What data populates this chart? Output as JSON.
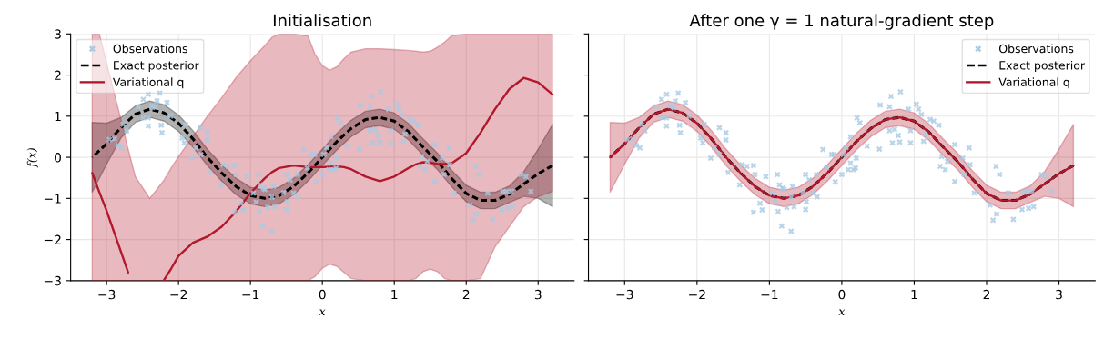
{
  "chart_data": [
    {
      "type": "line",
      "title": "Initialisation",
      "xlabel": "x",
      "ylabel": "f(x)",
      "xlim": [
        -3.5,
        3.5
      ],
      "ylim": [
        -3,
        3
      ],
      "xticks": [
        {
          "value": -3,
          "label": "−3"
        },
        {
          "value": -2,
          "label": "−2"
        },
        {
          "value": -1,
          "label": "−1"
        },
        0,
        1,
        2,
        3
      ],
      "yticks": [
        {
          "value": -3,
          "label": "−3"
        },
        {
          "value": -2,
          "label": "−2"
        },
        {
          "value": -1,
          "label": "−1"
        },
        0,
        1,
        2,
        3
      ],
      "grid": true,
      "legend": "top left",
      "series": [
        {
          "name": "Observations",
          "type": "scatter",
          "marker": "cross",
          "color": "#a9cbe3",
          "x": [
            -2.96,
            -2.89,
            -2.84,
            -2.79,
            -2.77,
            -2.72,
            -2.56,
            -2.49,
            -2.42,
            -2.37,
            -2.32,
            -2.3,
            -2.26,
            -2.42,
            -2.42,
            -2.49,
            -2.24,
            -2.23,
            -2.16,
            -2.11,
            -1.95,
            -1.92,
            -1.9,
            -1.81,
            -1.76,
            -1.69,
            -1.69,
            -1.6,
            -1.6,
            -1.57,
            -1.41,
            -1.38,
            -1.31,
            -1.22,
            -1.2,
            -1.22,
            -1.13,
            -1.1,
            -1.05,
            -0.96,
            -0.92,
            -0.88,
            -0.89,
            -0.86,
            -0.82,
            -0.8,
            -0.68,
            -0.7,
            -0.83,
            -0.7,
            -0.66,
            -0.76,
            -0.54,
            -0.5,
            -0.49,
            -0.5,
            -0.45,
            -0.4,
            -0.35,
            -0.34,
            -0.26,
            -0.21,
            -0.14,
            -0.11,
            -0.09,
            0.0,
            0.02,
            0.06,
            0.09,
            0.12,
            0.16,
            0.19,
            0.2,
            0.21,
            0.25,
            0.12,
            0.35,
            0.52,
            0.53,
            0.66,
            0.68,
            0.66,
            0.7,
            0.73,
            0.78,
            0.8,
            0.81,
            0.92,
            0.95,
            0.95,
            1.03,
            1.06,
            1.1,
            1.15,
            1.13,
            1.22,
            1.27,
            1.34,
            1.38,
            1.36,
            1.43,
            1.46,
            1.56,
            1.56,
            1.67,
            1.69,
            1.76,
            1.77,
            1.83,
            2.05,
            2.09,
            2.13,
            2.14,
            2.18,
            2.3,
            2.37,
            2.49,
            2.51,
            2.56,
            2.58,
            2.65,
            2.63,
            2.76,
            2.83,
            2.9
          ],
          "values": [
            0.43,
            0.45,
            0.29,
            0.23,
            0.8,
            0.64,
            1.23,
            1.41,
            1.53,
            1.25,
            1.21,
            1.37,
            1.56,
            0.76,
            0.96,
            0.96,
            0.78,
            0.6,
            1.33,
            1.0,
            0.47,
            0.35,
            0.8,
            -0.02,
            0.23,
            0.07,
            0.72,
            0.6,
            0.42,
            -0.37,
            -0.67,
            -0.18,
            -0.22,
            -0.2,
            -0.42,
            -1.34,
            -1.12,
            -1.28,
            -0.47,
            -0.87,
            -1.09,
            -1.32,
            -0.42,
            -0.67,
            -0.75,
            -0.78,
            -0.71,
            -0.97,
            -1.67,
            -1.8,
            -1.2,
            -1.22,
            -0.86,
            -0.42,
            -1.08,
            -1.27,
            -0.55,
            -0.87,
            -0.42,
            -0.96,
            0.19,
            -0.26,
            0.07,
            0.07,
            -0.6,
            -0.42,
            0.07,
            0.24,
            -0.3,
            -0.14,
            -0.3,
            -0.26,
            -0.02,
            0.96,
            0.84,
            0.5,
            0.27,
            0.2,
            1.27,
            1.23,
            1.48,
            0.65,
            0.35,
            0.68,
            0.53,
            0.37,
            1.59,
            1.17,
            0.65,
            0.35,
            1.29,
            1.17,
            1.04,
            0.56,
            0.39,
            0.92,
            0.88,
            0.78,
            0.02,
            -0.22,
            -0.3,
            -0.1,
            -0.59,
            0.31,
            -0.02,
            -0.42,
            0.23,
            -0.18,
            -0.87,
            -1.16,
            -1.53,
            -0.22,
            -1.38,
            -0.42,
            -0.87,
            -1.51,
            -1.27,
            -0.83,
            -0.83,
            -1.24,
            -1.2,
            -0.83,
            -0.42,
            -0.47,
            -0.83
          ]
        },
        {
          "name": "Exact posterior",
          "type": "line",
          "line_style": "dashed",
          "color": "#000000",
          "x": [
            -3.2,
            -3.0,
            -2.8,
            -2.6,
            -2.4,
            -2.2,
            -2.0,
            -1.8,
            -1.6,
            -1.4,
            -1.2,
            -1.0,
            -0.8,
            -0.6,
            -0.4,
            -0.2,
            0.0,
            0.2,
            0.4,
            0.6,
            0.8,
            1.0,
            1.2,
            1.4,
            1.6,
            1.8,
            2.0,
            2.2,
            2.4,
            2.6,
            2.8,
            3.0,
            3.2
          ],
          "values": [
            0.0,
            0.33,
            0.72,
            1.05,
            1.17,
            1.08,
            0.83,
            0.45,
            0.0,
            -0.38,
            -0.71,
            -0.93,
            -1.0,
            -0.93,
            -0.71,
            -0.38,
            0.0,
            0.38,
            0.7,
            0.92,
            0.97,
            0.88,
            0.62,
            0.25,
            -0.1,
            -0.52,
            -0.88,
            -1.05,
            -1.05,
            -0.9,
            -0.65,
            -0.4,
            -0.2
          ],
          "lower": [
            -0.85,
            -0.17,
            0.47,
            0.85,
            0.97,
            0.88,
            0.63,
            0.25,
            -0.2,
            -0.58,
            -0.91,
            -1.13,
            -1.2,
            -1.13,
            -0.91,
            -0.58,
            -0.2,
            0.18,
            0.5,
            0.72,
            0.77,
            0.68,
            0.42,
            0.05,
            -0.3,
            -0.72,
            -1.08,
            -1.25,
            -1.25,
            -1.1,
            -0.95,
            -1.0,
            -1.2
          ],
          "upper": [
            0.85,
            0.83,
            0.97,
            1.25,
            1.37,
            1.28,
            1.03,
            0.65,
            0.2,
            -0.18,
            -0.51,
            -0.73,
            -0.8,
            -0.73,
            -0.51,
            -0.18,
            0.2,
            0.58,
            0.9,
            1.12,
            1.17,
            1.08,
            0.82,
            0.45,
            0.1,
            -0.32,
            -0.68,
            -0.85,
            -0.85,
            -0.7,
            -0.35,
            0.2,
            0.8
          ]
        },
        {
          "name": "Variational q",
          "type": "line",
          "line_style": "solid",
          "color": "#b2182b",
          "x": [
            -3.2,
            -3.1,
            -3.0,
            -2.8,
            -2.7,
            -2.6,
            -2.4,
            -2.2,
            -2.1,
            -2.0,
            -1.8,
            -1.6,
            -1.4,
            -1.2,
            -1.0,
            -0.8,
            -0.7,
            -0.6,
            -0.4,
            -0.2,
            -0.1,
            0.0,
            0.1,
            0.2,
            0.3,
            0.4,
            0.6,
            0.8,
            1.0,
            1.2,
            1.3,
            1.4,
            1.5,
            1.6,
            1.7,
            1.8,
            2.0,
            2.2,
            2.4,
            2.6,
            2.8,
            3.0,
            3.2
          ],
          "values": [
            -0.38,
            -0.85,
            -1.3,
            -2.3,
            -2.8,
            null,
            null,
            -2.98,
            -2.7,
            -2.4,
            -2.08,
            -1.93,
            -1.69,
            -1.32,
            -0.87,
            -0.51,
            -0.36,
            -0.26,
            -0.2,
            -0.24,
            -0.24,
            -0.24,
            -0.23,
            -0.22,
            -0.24,
            -0.29,
            -0.47,
            -0.58,
            -0.47,
            -0.26,
            -0.17,
            -0.12,
            -0.13,
            -0.16,
            -0.16,
            -0.14,
            0.1,
            0.6,
            1.17,
            1.66,
            1.93,
            1.82,
            1.53
          ],
          "lower": [
            -3,
            -3,
            -3,
            -3,
            -3,
            -3,
            -3,
            -3,
            -3,
            -3,
            -3,
            -3,
            -3,
            -3,
            -3,
            -3,
            -3,
            -3,
            -3,
            -3,
            -2.9,
            -2.7,
            -2.6,
            -2.65,
            -2.8,
            -2.95,
            -3,
            -3,
            -3,
            -3,
            -2.95,
            -2.78,
            -2.72,
            -2.78,
            -2.95,
            -3,
            -3,
            -2.95,
            -2.18,
            -1.69,
            -1.2,
            -0.96,
            -0.83
          ],
          "upper": [
            3,
            3,
            2.3,
            0.92,
            0.2,
            -0.47,
            -1.0,
            -0.55,
            -0.25,
            0.02,
            0.51,
            1.0,
            1.45,
            1.94,
            2.35,
            2.72,
            2.92,
            3,
            3,
            2.95,
            2.5,
            2.23,
            2.12,
            2.2,
            2.4,
            2.56,
            2.64,
            2.64,
            2.62,
            2.6,
            2.58,
            2.56,
            2.58,
            2.68,
            2.8,
            2.96,
            3,
            3,
            3,
            3,
            3,
            3,
            3
          ]
        }
      ]
    },
    {
      "type": "line",
      "title": "After one γ = 1 natural-gradient step",
      "xlabel": "x",
      "xlim": [
        -3.5,
        3.5
      ],
      "ylim": [
        -3,
        3
      ],
      "xticks": [
        {
          "value": -3,
          "label": "−3"
        },
        {
          "value": -2,
          "label": "−2"
        },
        {
          "value": -1,
          "label": "−1"
        },
        0,
        1,
        2,
        3
      ],
      "yticks": [
        -3,
        -2,
        -1,
        0,
        1,
        2,
        3
      ],
      "grid": true,
      "legend": "top right",
      "tick_labels": "x",
      "series": [
        {
          "name": "Observations",
          "type": "scatter",
          "marker": "cross",
          "color": "#a9cbe3",
          "x": [
            -2.96,
            -2.89,
            -2.84,
            -2.79,
            -2.77,
            -2.72,
            -2.56,
            -2.49,
            -2.42,
            -2.37,
            -2.32,
            -2.3,
            -2.26,
            -2.42,
            -2.42,
            -2.49,
            -2.24,
            -2.23,
            -2.16,
            -2.11,
            -1.95,
            -1.92,
            -1.9,
            -1.81,
            -1.76,
            -1.69,
            -1.69,
            -1.6,
            -1.6,
            -1.57,
            -1.41,
            -1.38,
            -1.31,
            -1.22,
            -1.2,
            -1.22,
            -1.13,
            -1.1,
            -1.05,
            -0.96,
            -0.92,
            -0.88,
            -0.89,
            -0.86,
            -0.82,
            -0.8,
            -0.68,
            -0.7,
            -0.83,
            -0.7,
            -0.66,
            -0.76,
            -0.54,
            -0.5,
            -0.49,
            -0.5,
            -0.45,
            -0.4,
            -0.35,
            -0.34,
            -0.26,
            -0.21,
            -0.14,
            -0.11,
            -0.09,
            0.0,
            0.02,
            0.06,
            0.09,
            0.12,
            0.16,
            0.19,
            0.2,
            0.21,
            0.25,
            0.12,
            0.35,
            0.52,
            0.53,
            0.66,
            0.68,
            0.66,
            0.7,
            0.73,
            0.78,
            0.8,
            0.81,
            0.92,
            0.95,
            0.95,
            1.03,
            1.06,
            1.1,
            1.15,
            1.13,
            1.22,
            1.27,
            1.34,
            1.38,
            1.36,
            1.43,
            1.46,
            1.56,
            1.56,
            1.67,
            1.69,
            1.76,
            1.77,
            1.83,
            2.05,
            2.09,
            2.13,
            2.14,
            2.18,
            2.3,
            2.37,
            2.49,
            2.51,
            2.56,
            2.58,
            2.65,
            2.63,
            2.76,
            2.83,
            2.9
          ],
          "values": [
            0.43,
            0.45,
            0.29,
            0.23,
            0.8,
            0.64,
            1.23,
            1.41,
            1.53,
            1.25,
            1.21,
            1.37,
            1.56,
            0.76,
            0.96,
            0.96,
            0.78,
            0.6,
            1.33,
            1.0,
            0.47,
            0.35,
            0.8,
            -0.02,
            0.23,
            0.07,
            0.72,
            0.6,
            0.42,
            -0.37,
            -0.67,
            -0.18,
            -0.22,
            -0.2,
            -0.42,
            -1.34,
            -1.12,
            -1.28,
            -0.47,
            -0.87,
            -1.09,
            -1.32,
            -0.42,
            -0.67,
            -0.75,
            -0.78,
            -0.71,
            -0.97,
            -1.67,
            -1.8,
            -1.2,
            -1.22,
            -0.86,
            -0.42,
            -1.08,
            -1.27,
            -0.55,
            -0.87,
            -0.42,
            -0.96,
            0.19,
            -0.26,
            0.07,
            0.07,
            -0.6,
            -0.42,
            0.07,
            0.24,
            -0.3,
            -0.14,
            -0.3,
            -0.26,
            -0.02,
            0.96,
            0.84,
            0.5,
            0.27,
            0.2,
            1.27,
            1.23,
            1.48,
            0.65,
            0.35,
            0.68,
            0.53,
            0.37,
            1.59,
            1.17,
            0.65,
            0.35,
            1.29,
            1.17,
            1.04,
            0.56,
            0.39,
            0.92,
            0.88,
            0.78,
            0.02,
            -0.22,
            -0.3,
            -0.1,
            -0.59,
            0.31,
            -0.02,
            -0.42,
            0.23,
            -0.18,
            -0.87,
            -1.16,
            -1.53,
            -0.22,
            -1.38,
            -0.42,
            -0.87,
            -1.51,
            -1.27,
            -0.83,
            -0.83,
            -1.24,
            -1.2,
            -0.83,
            -0.42,
            -0.47,
            -0.83
          ]
        },
        {
          "name": "Exact posterior",
          "line_style": "dashed",
          "color": "#000000",
          "x": [
            -3.2,
            -3.0,
            -2.8,
            -2.6,
            -2.4,
            -2.2,
            -2.0,
            -1.8,
            -1.6,
            -1.4,
            -1.2,
            -1.0,
            -0.8,
            -0.6,
            -0.4,
            -0.2,
            0.0,
            0.2,
            0.4,
            0.6,
            0.8,
            1.0,
            1.2,
            1.4,
            1.6,
            1.8,
            2.0,
            2.2,
            2.4,
            2.6,
            2.8,
            3.0,
            3.2
          ],
          "values": [
            0.0,
            0.33,
            0.72,
            1.05,
            1.17,
            1.08,
            0.83,
            0.45,
            0.0,
            -0.38,
            -0.71,
            -0.93,
            -1.0,
            -0.93,
            -0.71,
            -0.38,
            0.0,
            0.38,
            0.7,
            0.92,
            0.97,
            0.88,
            0.62,
            0.25,
            -0.1,
            -0.52,
            -0.88,
            -1.05,
            -1.05,
            -0.9,
            -0.65,
            -0.4,
            -0.2
          ]
        },
        {
          "name": "Variational q",
          "type": "line",
          "line_style": "solid",
          "color": "#b2182b",
          "x": [
            -3.2,
            -3.0,
            -2.8,
            -2.6,
            -2.4,
            -2.2,
            -2.0,
            -1.8,
            -1.6,
            -1.4,
            -1.2,
            -1.0,
            -0.8,
            -0.6,
            -0.4,
            -0.2,
            0.0,
            0.2,
            0.4,
            0.6,
            0.8,
            1.0,
            1.2,
            1.4,
            1.6,
            1.8,
            2.0,
            2.2,
            2.4,
            2.6,
            2.8,
            3.0,
            3.2
          ],
          "values": [
            0.0,
            0.33,
            0.72,
            1.05,
            1.17,
            1.08,
            0.83,
            0.45,
            0.0,
            -0.38,
            -0.71,
            -0.93,
            -1.0,
            -0.93,
            -0.71,
            -0.38,
            0.0,
            0.38,
            0.7,
            0.92,
            0.97,
            0.88,
            0.62,
            0.25,
            -0.1,
            -0.52,
            -0.88,
            -1.05,
            -1.05,
            -0.9,
            -0.65,
            -0.4,
            -0.2
          ],
          "lower": [
            -0.85,
            -0.17,
            0.47,
            0.85,
            0.97,
            0.88,
            0.63,
            0.25,
            -0.2,
            -0.58,
            -0.91,
            -1.13,
            -1.2,
            -1.13,
            -0.91,
            -0.58,
            -0.2,
            0.18,
            0.5,
            0.72,
            0.77,
            0.68,
            0.42,
            0.05,
            -0.3,
            -0.72,
            -1.08,
            -1.25,
            -1.25,
            -1.1,
            -0.95,
            -1.0,
            -1.2
          ],
          "upper": [
            0.85,
            0.83,
            0.97,
            1.25,
            1.37,
            1.28,
            1.03,
            0.65,
            0.2,
            -0.18,
            -0.51,
            -0.73,
            -0.8,
            -0.73,
            -0.51,
            -0.18,
            0.2,
            0.58,
            0.9,
            1.12,
            1.17,
            1.08,
            0.82,
            0.45,
            0.1,
            -0.32,
            -0.68,
            -0.85,
            -0.85,
            -0.7,
            -0.35,
            0.2,
            0.8
          ]
        }
      ]
    }
  ]
}
